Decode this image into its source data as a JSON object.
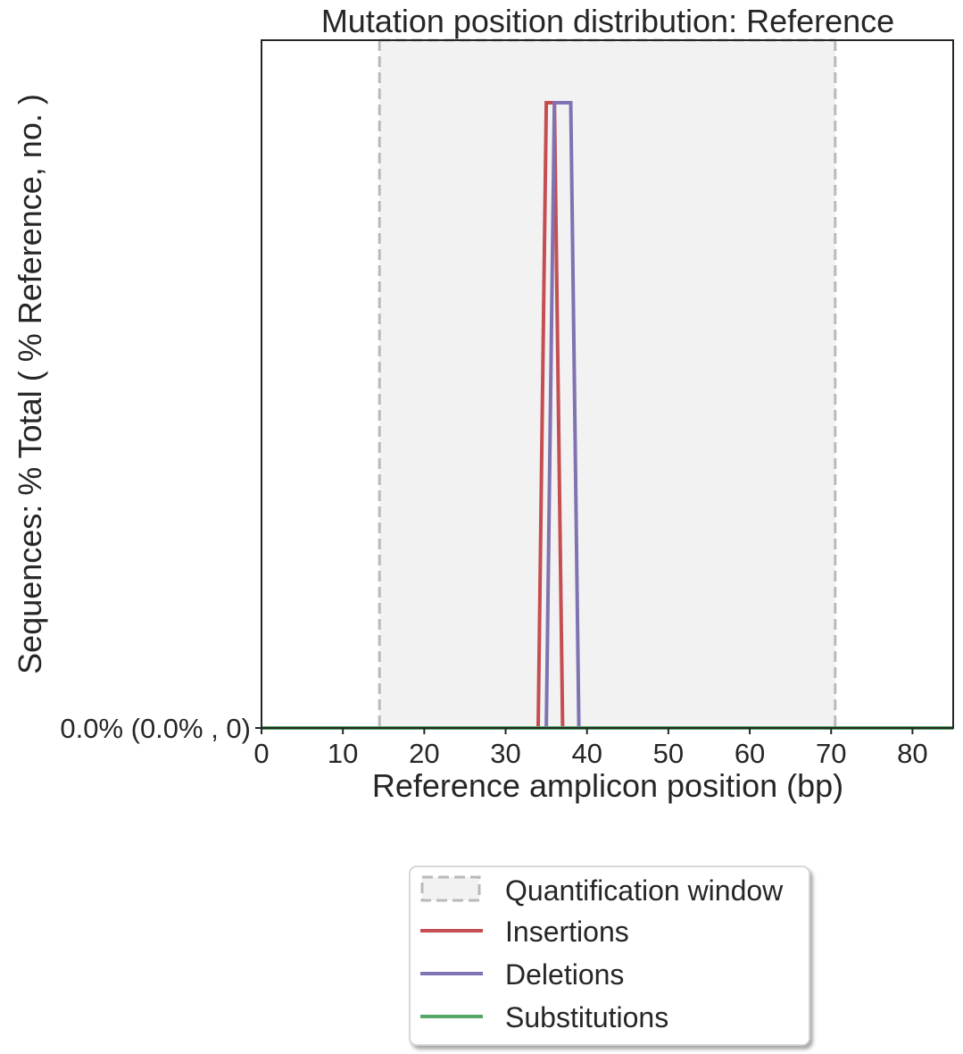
{
  "chart_data": {
    "type": "line",
    "title": "Mutation position distribution: Reference",
    "xlabel": "Reference amplicon position (bp)",
    "ylabel": "Sequences: % Total ( % Reference, no. )",
    "xlim": [
      0,
      85
    ],
    "ylim": [
      0,
      1.1
    ],
    "x_ticks": [
      0,
      10,
      20,
      30,
      40,
      50,
      60,
      70,
      80
    ],
    "x_tick_labels": [
      "0",
      "10",
      "20",
      "30",
      "40",
      "50",
      "60",
      "70",
      "80"
    ],
    "y_ticks": [
      0
    ],
    "y_tick_labels": [
      "0.0% (0.0% , 0)"
    ],
    "grid": false,
    "quantification_window": {
      "name": "Quantification window",
      "x_start": 14.5,
      "x_end": 70.5,
      "fill_color": "#f2f2f2",
      "edge_color": "#bababa"
    },
    "series": [
      {
        "name": "Insertions",
        "color": "#c44e52",
        "points": [
          [
            0,
            0
          ],
          [
            34,
            0
          ],
          [
            35,
            1
          ],
          [
            36,
            1
          ],
          [
            37,
            0
          ],
          [
            85,
            0
          ]
        ]
      },
      {
        "name": "Deletions",
        "color": "#8172b2",
        "points": [
          [
            0,
            0
          ],
          [
            35,
            0
          ],
          [
            36,
            1
          ],
          [
            38,
            1
          ],
          [
            39,
            0
          ],
          [
            85,
            0
          ]
        ]
      },
      {
        "name": "Substitutions",
        "color": "#55a868",
        "points": [
          [
            0,
            0
          ],
          [
            85,
            0
          ]
        ]
      }
    ],
    "legend": {
      "placement": "bottom-center, below plot",
      "entries": [
        "Quantification window",
        "Insertions",
        "Deletions",
        "Substitutions"
      ]
    }
  }
}
